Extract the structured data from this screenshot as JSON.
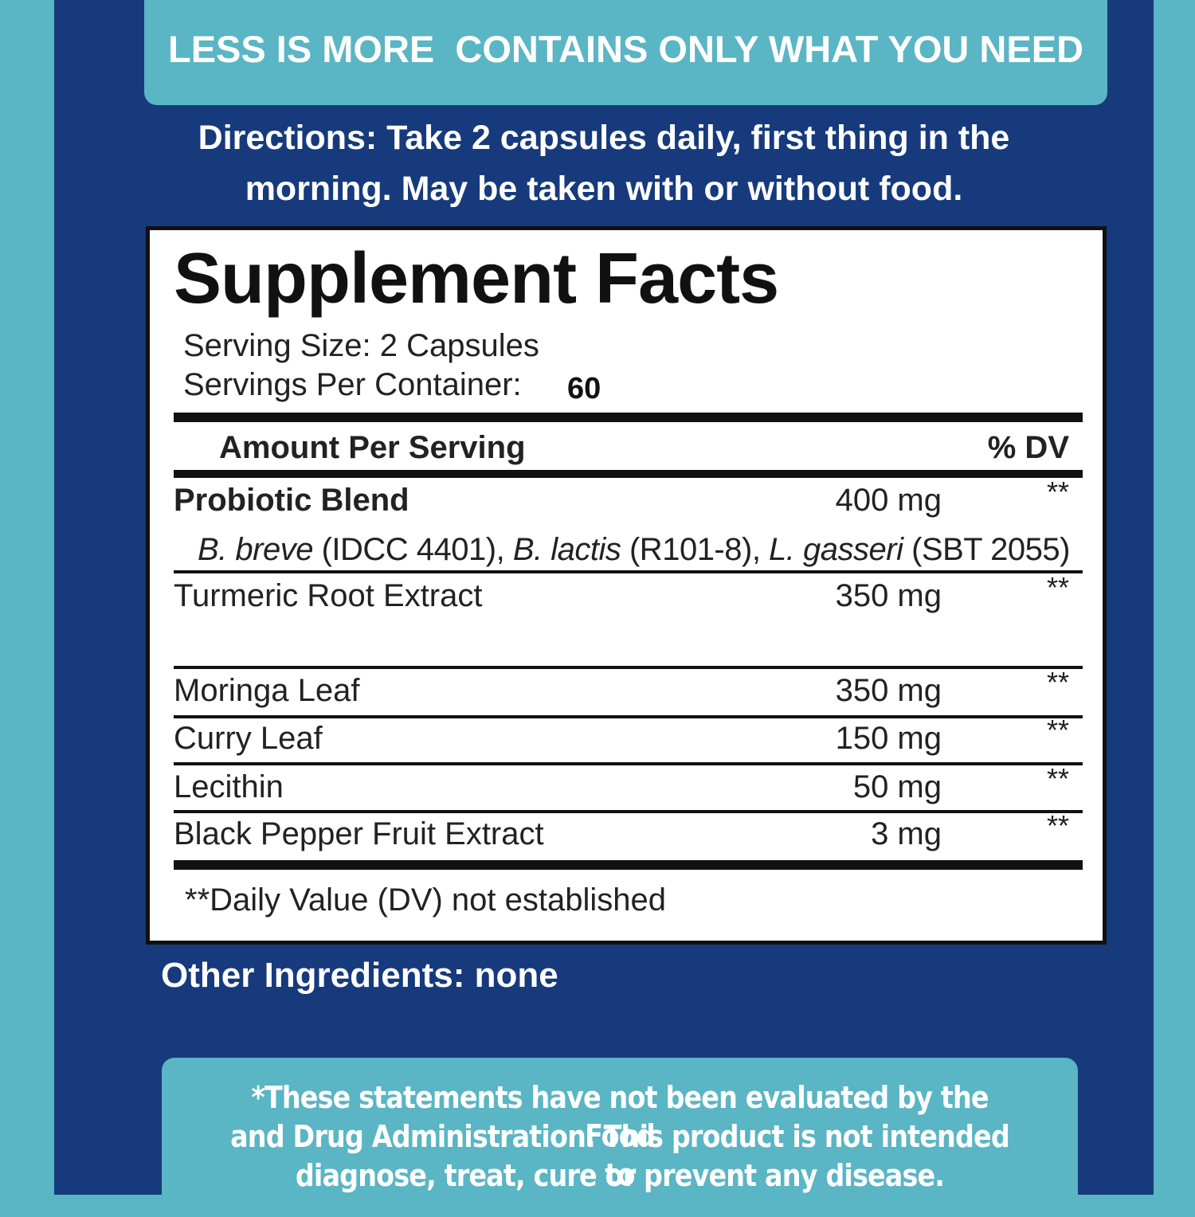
{
  "banner": "LESS IS MORE  CONTAINS ONLY WHAT YOU NEED",
  "directions": [
    "Directions: Take 2 capsules daily, first thing in the",
    "morning. May be taken with or without food."
  ],
  "facts": {
    "title": "Supplement Facts",
    "serving_size": "Serving Size: 2 Capsules",
    "servings_per_container_label": "Servings Per Container:",
    "servings_per_container": "60",
    "header": {
      "amount": "Amount Per Serving",
      "dv": "% DV"
    },
    "rows": [
      {
        "name": "Probiotic Blend",
        "amount": "400 mg",
        "dv": "**",
        "strains": [
          {
            "text": "B. breve",
            "italic": true
          },
          {
            "text": " (IDCC 4401), ",
            "italic": false
          },
          {
            "text": "B. lactis",
            "italic": true
          },
          {
            "text": " (R101-8), ",
            "italic": false
          },
          {
            "text": "L. gasseri",
            "italic": true
          },
          {
            "text": " (SBT 2055)",
            "italic": false
          }
        ]
      },
      {
        "name": "Turmeric Root Extract",
        "amount": "350 mg",
        "dv": "**"
      },
      {
        "name": "Moringa Leaf",
        "amount": "350 mg",
        "dv": "**"
      },
      {
        "name": "Curry Leaf",
        "amount": "150 mg",
        "dv": "**"
      },
      {
        "name": "Lecithin",
        "amount": "50 mg",
        "dv": "**"
      },
      {
        "name": "Black Pepper Fruit Extract",
        "amount": "3 mg",
        "dv": "**"
      }
    ],
    "footnote": "**Daily Value (DV) not established"
  },
  "other_ingredients": "Other Ingredients: none",
  "disclaimer": [
    "*These statements have not been evaluated by the Food",
    "and Drug Administration. This product is not intended to",
    "diagnose, treat, cure or prevent any disease."
  ]
}
